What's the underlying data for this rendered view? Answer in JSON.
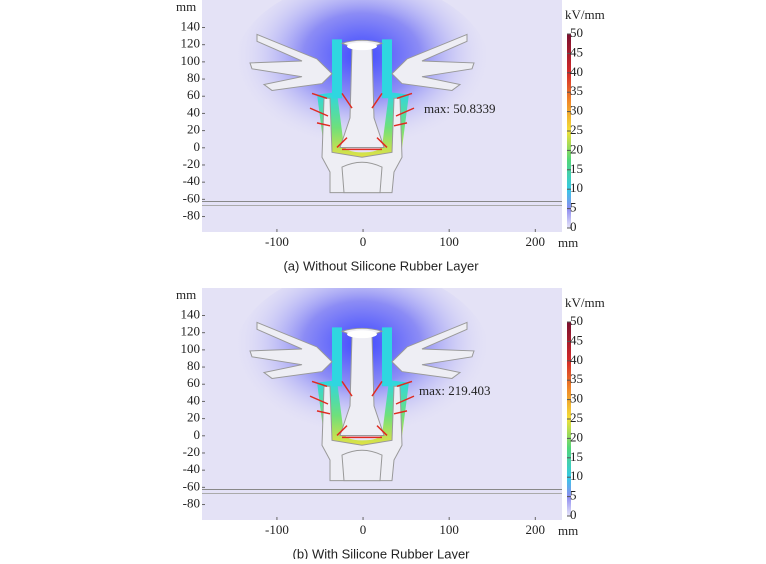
{
  "panels": [
    {
      "caption": "(a) Without Silicone Rubber Layer",
      "x_unit": "mm",
      "y_unit": "mm",
      "xlim": [
        -187,
        231
      ],
      "ylim": [
        -98,
        172
      ],
      "xticks": [
        -100,
        0,
        100,
        200
      ],
      "yticks": [
        140,
        120,
        100,
        80,
        60,
        40,
        20,
        0,
        -20,
        -40,
        -60,
        -80
      ],
      "colorbar": {
        "unit": "kV/mm",
        "lim": [
          0,
          50
        ],
        "ticks": [
          50,
          45,
          40,
          35,
          30,
          25,
          20,
          15,
          10,
          5,
          0
        ]
      },
      "annotation": "max: 50.8339"
    },
    {
      "caption": "(b) With Silicone Rubber Layer",
      "x_unit": "mm",
      "y_unit": "mm",
      "xlim": [
        -187,
        231
      ],
      "ylim": [
        -98,
        172
      ],
      "xticks": [
        -100,
        0,
        100,
        200
      ],
      "yticks": [
        140,
        120,
        100,
        80,
        60,
        40,
        20,
        0,
        -20,
        -40,
        -60,
        -80
      ],
      "colorbar": {
        "unit": "kV/mm",
        "lim": [
          0,
          50
        ],
        "ticks": [
          50,
          45,
          40,
          35,
          30,
          25,
          20,
          15,
          10,
          5,
          0
        ]
      },
      "annotation": "max: 219.403"
    }
  ]
}
